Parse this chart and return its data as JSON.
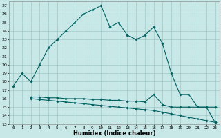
{
  "xlabel": "Humidex (Indice chaleur)",
  "background_color": "#c8e8e8",
  "grid_color": "#a0c8c8",
  "line_color": "#006060",
  "xlim": [
    -0.5,
    23.5
  ],
  "ylim": [
    13,
    27.5
  ],
  "yticks": [
    13,
    14,
    15,
    16,
    17,
    18,
    19,
    20,
    21,
    22,
    23,
    24,
    25,
    26,
    27
  ],
  "xticks": [
    0,
    1,
    2,
    3,
    4,
    5,
    6,
    7,
    8,
    9,
    10,
    11,
    12,
    13,
    14,
    15,
    16,
    17,
    18,
    19,
    20,
    21,
    22,
    23
  ],
  "line1_x": [
    0,
    1,
    2,
    3,
    4,
    5,
    6,
    7,
    8,
    9,
    10,
    11,
    12,
    13,
    14,
    15,
    16,
    17,
    18,
    19,
    20,
    21,
    22,
    23
  ],
  "line1_y": [
    17.5,
    19.0,
    18.0,
    20.0,
    22.0,
    23.0,
    24.0,
    25.0,
    26.0,
    26.5,
    27.0,
    24.5,
    25.0,
    23.5,
    23.0,
    23.5,
    24.5,
    22.5,
    19.0,
    16.5,
    16.5,
    15.0,
    15.0,
    15.0
  ],
  "line2_x": [
    2,
    3,
    4,
    5,
    6,
    7,
    8,
    9,
    10,
    11,
    12,
    13,
    14,
    15,
    16,
    17,
    18,
    19,
    20,
    21,
    22,
    23
  ],
  "line2_y": [
    16.2,
    16.2,
    16.1,
    16.1,
    16.0,
    16.0,
    16.0,
    15.9,
    15.9,
    15.8,
    15.8,
    15.7,
    15.7,
    15.6,
    16.5,
    15.3,
    15.0,
    15.0,
    15.0,
    15.0,
    15.0,
    13.2
  ],
  "line3_x": [
    2,
    3,
    4,
    5,
    6,
    7,
    8,
    9,
    10,
    11,
    12,
    13,
    14,
    15,
    16,
    17,
    18,
    19,
    20,
    21,
    22,
    23
  ],
  "line3_y": [
    16.0,
    15.9,
    15.8,
    15.7,
    15.6,
    15.5,
    15.4,
    15.3,
    15.2,
    15.1,
    15.0,
    14.9,
    14.8,
    14.7,
    14.6,
    14.4,
    14.2,
    14.0,
    13.8,
    13.6,
    13.4,
    13.2
  ]
}
